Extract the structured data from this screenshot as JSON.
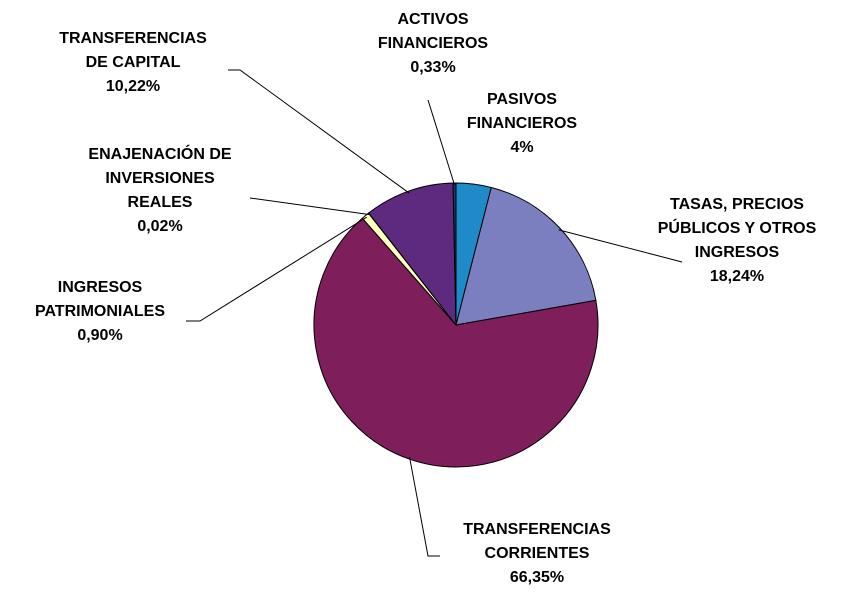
{
  "chart_data": {
    "type": "pie",
    "categories": [
      "PASIVOS FINANCIEROS",
      "TASAS, PRECIOS PÚBLICOS Y OTROS INGRESOS",
      "TRANSFERENCIAS CORRIENTES",
      "INGRESOS PATRIMONIALES",
      "ENAJENACIÓN DE INVERSIONES REALES",
      "TRANSFERENCIAS DE CAPITAL",
      "ACTIVOS FINANCIEROS"
    ],
    "values": [
      4,
      18.24,
      66.35,
      0.9,
      0.02,
      10.22,
      0.33
    ],
    "value_labels": [
      "4%",
      "18,24%",
      "66,35%",
      "0,90%",
      "0,02%",
      "10,22%",
      "0,33%"
    ],
    "colors": [
      "#1f8ac8",
      "#7b7fc0",
      "#7e1f5c",
      "#ffffc0",
      "#e0e0e0",
      "#5e2a80",
      "#1a3a70"
    ]
  }
}
